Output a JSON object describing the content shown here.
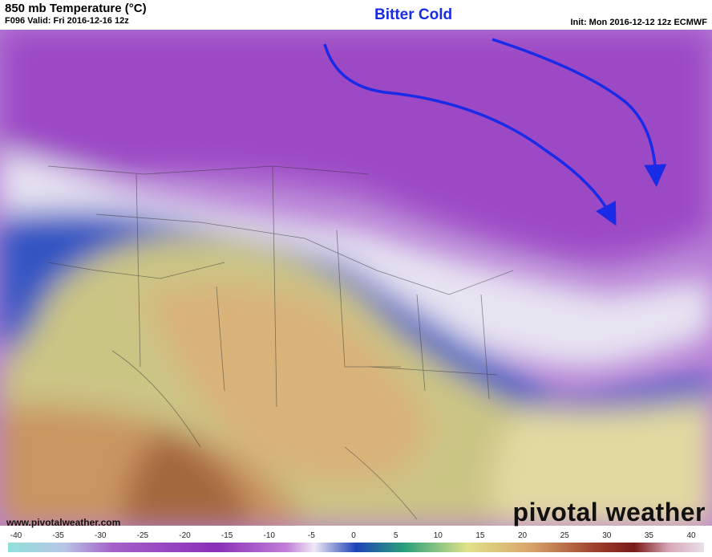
{
  "header": {
    "title": "850 mb Temperature (°C)",
    "subtitle": "F096 Valid: Fri 2016-12-16 12z",
    "init": "Init: Mon 2016-12-12 12z ECMWF"
  },
  "annotation": "Bitter Cold",
  "footer": {
    "website": "www.pivotalweather.com",
    "brand": "pivotal weather"
  },
  "colorbar": {
    "ticks": [
      -40,
      -35,
      -30,
      -25,
      -20,
      -15,
      -10,
      -5,
      0,
      5,
      10,
      15,
      20,
      25,
      30,
      35,
      40
    ]
  }
}
